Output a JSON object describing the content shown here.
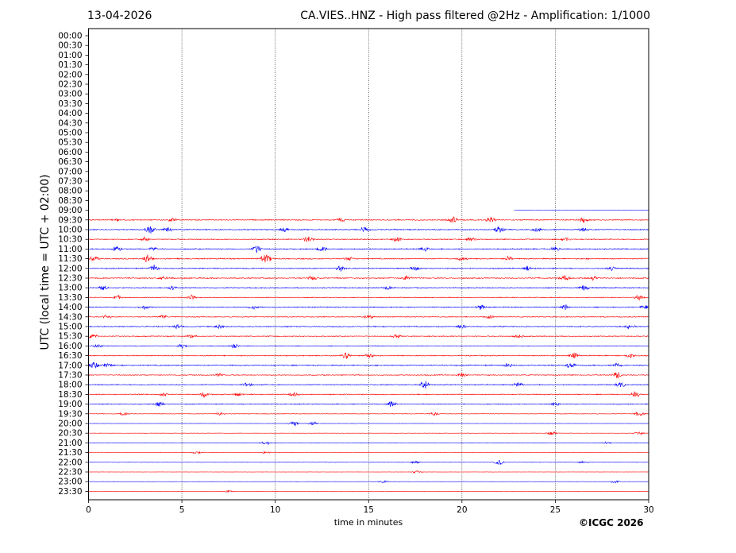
{
  "header": {
    "date": "13-04-2026",
    "title": "CA.VIES..HNZ - High pass filtered @2Hz - Amplification: 1/1000"
  },
  "footer": {
    "copyright": "©ICGC 2026"
  },
  "chart_data": {
    "type": "line",
    "title": "CA.VIES..HNZ - High pass filtered @2Hz - Amplification: 1/1000",
    "xlabel": "time in minutes",
    "ylabel": "UTC (local time = UTC + 02:00)",
    "xlim": [
      0,
      30
    ],
    "x_ticks": [
      "0",
      "5",
      "10",
      "15",
      "20",
      "25",
      "30"
    ],
    "vertical_grid_at": [
      5,
      10,
      15,
      20,
      25
    ],
    "y_ticks": [
      "00:00",
      "00:30",
      "01:00",
      "01:30",
      "02:00",
      "02:30",
      "03:00",
      "03:30",
      "04:00",
      "04:30",
      "05:00",
      "05:30",
      "06:00",
      "06:30",
      "07:00",
      "07:30",
      "08:00",
      "08:30",
      "09:00",
      "09:30",
      "10:00",
      "10:30",
      "11:00",
      "11:30",
      "12:00",
      "12:30",
      "13:00",
      "13:30",
      "14:00",
      "14:30",
      "15:00",
      "15:30",
      "16:00",
      "16:30",
      "17:00",
      "17:30",
      "18:00",
      "18:30",
      "19:00",
      "19:30",
      "20:00",
      "20:30",
      "21:00",
      "21:30",
      "22:00",
      "22:30",
      "23:00",
      "23:30"
    ],
    "colors": {
      "even_rows": "#0000ff",
      "odd_rows": "#ff0000"
    },
    "traces": [
      {
        "time": "09:00",
        "start_minute": 22.8,
        "noise": 0.05,
        "events": []
      },
      {
        "time": "09:30",
        "start_minute": 0,
        "noise": 0.5,
        "events": [
          [
            1.5,
            2
          ],
          [
            4.5,
            3
          ],
          [
            13.5,
            3
          ],
          [
            19.5,
            5
          ],
          [
            21.5,
            6
          ],
          [
            26.5,
            4
          ]
        ]
      },
      {
        "time": "10:00",
        "start_minute": 0,
        "noise": 0.55,
        "events": [
          [
            3.3,
            6
          ],
          [
            4.2,
            4
          ],
          [
            10.5,
            3
          ],
          [
            14.8,
            4
          ],
          [
            22,
            5
          ],
          [
            24,
            3
          ],
          [
            26.5,
            3
          ]
        ]
      },
      {
        "time": "10:30",
        "start_minute": 0,
        "noise": 0.5,
        "events": [
          [
            3,
            3
          ],
          [
            11.8,
            5
          ],
          [
            16.5,
            4
          ],
          [
            20.5,
            3
          ],
          [
            25.5,
            3
          ]
        ]
      },
      {
        "time": "11:00",
        "start_minute": 0,
        "noise": 0.55,
        "events": [
          [
            1.5,
            6
          ],
          [
            3.5,
            3
          ],
          [
            9,
            6
          ],
          [
            12.5,
            4
          ],
          [
            18,
            3
          ],
          [
            25,
            3
          ]
        ]
      },
      {
        "time": "11:30",
        "start_minute": 0,
        "noise": 0.6,
        "events": [
          [
            0.3,
            4
          ],
          [
            3.2,
            6
          ],
          [
            9.5,
            7
          ],
          [
            14,
            3
          ],
          [
            20,
            3
          ],
          [
            22.5,
            3
          ]
        ]
      },
      {
        "time": "12:00",
        "start_minute": 0,
        "noise": 0.5,
        "events": [
          [
            3.5,
            5
          ],
          [
            13.5,
            5
          ],
          [
            17.5,
            3
          ],
          [
            23.5,
            3
          ],
          [
            28,
            3
          ]
        ]
      },
      {
        "time": "12:30",
        "start_minute": 0,
        "noise": 0.55,
        "events": [
          [
            4,
            3
          ],
          [
            12,
            3
          ],
          [
            17,
            3
          ],
          [
            25.5,
            4
          ],
          [
            27,
            3
          ]
        ]
      },
      {
        "time": "13:00",
        "start_minute": 0,
        "noise": 0.5,
        "events": [
          [
            0.8,
            4
          ],
          [
            4.5,
            3
          ],
          [
            16,
            3
          ],
          [
            26.5,
            4
          ]
        ]
      },
      {
        "time": "13:30",
        "start_minute": 0,
        "noise": 0.45,
        "events": [
          [
            1.6,
            3
          ],
          [
            5.5,
            3
          ],
          [
            29.5,
            5
          ]
        ]
      },
      {
        "time": "14:00",
        "start_minute": 0,
        "noise": 0.5,
        "events": [
          [
            3,
            3
          ],
          [
            8.8,
            3
          ],
          [
            21,
            4
          ],
          [
            25.5,
            4
          ],
          [
            29.8,
            3
          ]
        ]
      },
      {
        "time": "14:30",
        "start_minute": 0,
        "noise": 0.45,
        "events": [
          [
            1,
            3
          ],
          [
            4,
            3
          ],
          [
            15,
            3
          ],
          [
            21.5,
            3
          ]
        ]
      },
      {
        "time": "15:00",
        "start_minute": 0,
        "noise": 0.5,
        "events": [
          [
            4.8,
            3
          ],
          [
            7,
            3
          ],
          [
            20,
            4
          ],
          [
            29,
            3
          ]
        ]
      },
      {
        "time": "15:30",
        "start_minute": 0,
        "noise": 0.45,
        "events": [
          [
            0.2,
            4
          ],
          [
            5.5,
            3
          ],
          [
            16.5,
            3
          ],
          [
            23,
            3
          ]
        ]
      },
      {
        "time": "16:00",
        "start_minute": 0,
        "noise": 0.35,
        "events": [
          [
            0.5,
            3
          ],
          [
            5,
            3
          ],
          [
            7.8,
            3
          ]
        ]
      },
      {
        "time": "16:30",
        "start_minute": 0,
        "noise": 0.5,
        "events": [
          [
            13.8,
            5
          ],
          [
            15,
            4
          ],
          [
            26,
            5
          ],
          [
            29,
            3
          ]
        ]
      },
      {
        "time": "17:00",
        "start_minute": 0,
        "noise": 0.55,
        "events": [
          [
            0.3,
            5
          ],
          [
            1,
            3
          ],
          [
            22.5,
            3
          ],
          [
            25.8,
            5
          ],
          [
            28.3,
            3
          ]
        ]
      },
      {
        "time": "17:30",
        "start_minute": 0,
        "noise": 0.45,
        "events": [
          [
            7,
            3
          ],
          [
            20,
            3
          ],
          [
            28.3,
            5
          ]
        ]
      },
      {
        "time": "18:00",
        "start_minute": 0,
        "noise": 0.5,
        "events": [
          [
            8.5,
            3
          ],
          [
            18,
            7
          ],
          [
            23,
            3
          ],
          [
            28.5,
            4
          ]
        ]
      },
      {
        "time": "18:30",
        "start_minute": 0,
        "noise": 0.5,
        "events": [
          [
            4,
            3
          ],
          [
            6.2,
            4
          ],
          [
            8,
            3
          ],
          [
            11,
            3
          ],
          [
            29.3,
            5
          ]
        ]
      },
      {
        "time": "19:00",
        "start_minute": 0,
        "noise": 0.45,
        "events": [
          [
            3.8,
            4
          ],
          [
            16.2,
            4
          ],
          [
            25,
            3
          ]
        ]
      },
      {
        "time": "19:30",
        "start_minute": 0,
        "noise": 0.3,
        "events": [
          [
            1.9,
            3
          ],
          [
            7,
            2
          ],
          [
            18.5,
            3
          ],
          [
            29.5,
            4
          ]
        ]
      },
      {
        "time": "20:00",
        "start_minute": 0,
        "noise": 0.15,
        "events": [
          [
            11,
            5
          ],
          [
            12,
            3
          ]
        ]
      },
      {
        "time": "20:30",
        "start_minute": 0,
        "noise": 0.2,
        "events": [
          [
            24.8,
            3
          ],
          [
            29.5,
            2
          ]
        ]
      },
      {
        "time": "21:00",
        "start_minute": 0,
        "noise": 0.2,
        "events": [
          [
            9.5,
            3
          ],
          [
            27.7,
            2
          ]
        ]
      },
      {
        "time": "21:30",
        "start_minute": 0,
        "noise": 0.2,
        "events": [
          [
            5.8,
            2
          ],
          [
            9.5,
            2
          ]
        ]
      },
      {
        "time": "22:00",
        "start_minute": 0,
        "noise": 0.2,
        "events": [
          [
            17.5,
            2
          ],
          [
            22,
            4
          ],
          [
            26.5,
            2
          ]
        ]
      },
      {
        "time": "22:30",
        "start_minute": 0,
        "noise": 0.12,
        "events": [
          [
            17.6,
            2
          ]
        ]
      },
      {
        "time": "23:00",
        "start_minute": 0,
        "noise": 0.12,
        "events": [
          [
            15.8,
            2
          ],
          [
            28.2,
            3
          ]
        ]
      },
      {
        "time": "23:30",
        "start_minute": 0,
        "noise": 0.1,
        "events": [
          [
            7.5,
            1.5
          ]
        ]
      }
    ]
  }
}
